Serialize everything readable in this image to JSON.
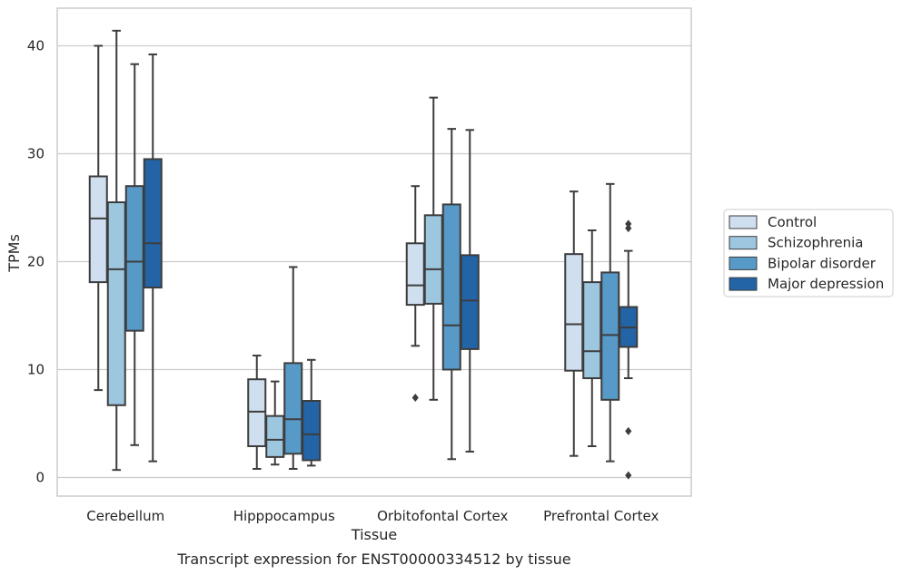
{
  "chart_data": {
    "type": "box",
    "title": "",
    "caption": "Transcript expression for ENST00000334512 by tissue",
    "xlabel": "Tissue",
    "ylabel": "TPMs",
    "ylim": [
      -1.7,
      43.5
    ],
    "yticks": [
      0,
      10,
      20,
      30,
      40
    ],
    "grid": "horizontal",
    "legend_position": "right",
    "categories": [
      "Cerebellum",
      "Hipppocampus",
      "Orbitofontal Cortex",
      "Prefrontal Cortex"
    ],
    "series": [
      {
        "name": "Control",
        "color": "#cfdff0",
        "boxes": [
          {
            "whislo": 8.1,
            "q1": 18.1,
            "med": 24.0,
            "q3": 27.9,
            "whishi": 40.0,
            "fliers": []
          },
          {
            "whislo": 0.8,
            "q1": 2.9,
            "med": 6.1,
            "q3": 9.1,
            "whishi": 11.3,
            "fliers": []
          },
          {
            "whislo": 12.2,
            "q1": 16.0,
            "med": 17.8,
            "q3": 21.7,
            "whishi": 27.0,
            "fliers": [
              7.4
            ]
          },
          {
            "whislo": 2.0,
            "q1": 9.9,
            "med": 14.2,
            "q3": 20.7,
            "whishi": 26.5,
            "fliers": []
          }
        ]
      },
      {
        "name": "Schizophrenia",
        "color": "#9dc6df",
        "boxes": [
          {
            "whislo": 0.7,
            "q1": 6.7,
            "med": 19.3,
            "q3": 25.5,
            "whishi": 41.4,
            "fliers": []
          },
          {
            "whislo": 1.2,
            "q1": 1.9,
            "med": 3.5,
            "q3": 5.7,
            "whishi": 8.9,
            "fliers": []
          },
          {
            "whislo": 7.2,
            "q1": 16.1,
            "med": 19.3,
            "q3": 24.3,
            "whishi": 35.2,
            "fliers": []
          },
          {
            "whislo": 2.9,
            "q1": 9.2,
            "med": 11.7,
            "q3": 18.1,
            "whishi": 22.9,
            "fliers": []
          }
        ]
      },
      {
        "name": "Bipolar disorder",
        "color": "#5799c7",
        "boxes": [
          {
            "whislo": 3.0,
            "q1": 13.6,
            "med": 20.0,
            "q3": 27.0,
            "whishi": 38.3,
            "fliers": []
          },
          {
            "whislo": 0.8,
            "q1": 2.2,
            "med": 5.4,
            "q3": 10.6,
            "whishi": 19.5,
            "fliers": []
          },
          {
            "whislo": 1.7,
            "q1": 10.0,
            "med": 14.1,
            "q3": 25.3,
            "whishi": 32.3,
            "fliers": []
          },
          {
            "whislo": 1.5,
            "q1": 7.2,
            "med": 13.2,
            "q3": 19.0,
            "whishi": 27.2,
            "fliers": []
          }
        ]
      },
      {
        "name": "Major depression",
        "color": "#2364a6",
        "boxes": [
          {
            "whislo": 1.5,
            "q1": 17.6,
            "med": 21.7,
            "q3": 29.5,
            "whishi": 39.2,
            "fliers": []
          },
          {
            "whislo": 1.1,
            "q1": 1.6,
            "med": 4.0,
            "q3": 7.1,
            "whishi": 10.9,
            "fliers": []
          },
          {
            "whislo": 2.4,
            "q1": 11.9,
            "med": 16.4,
            "q3": 20.6,
            "whishi": 32.2,
            "fliers": []
          },
          {
            "whislo": 9.2,
            "q1": 12.1,
            "med": 13.9,
            "q3": 15.8,
            "whishi": 21.0,
            "fliers": [
              23.5,
              23.1,
              4.3,
              0.2
            ]
          }
        ]
      }
    ]
  }
}
